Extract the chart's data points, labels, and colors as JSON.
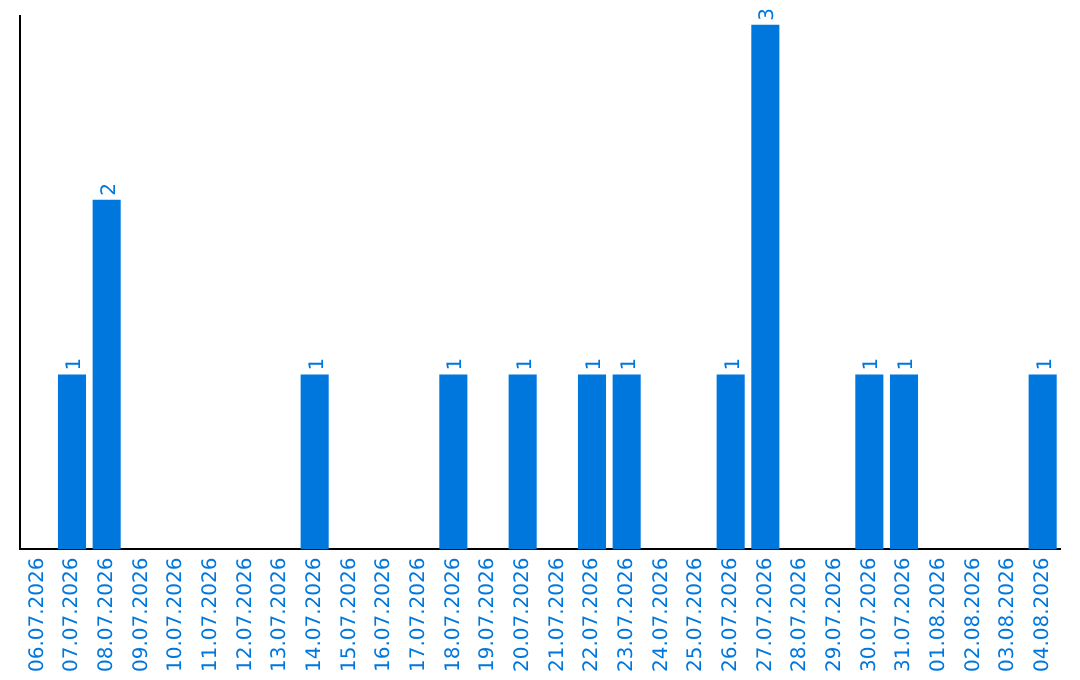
{
  "chart_data": {
    "type": "bar",
    "categories": [
      "06.07.2026",
      "07.07.2026",
      "08.07.2026",
      "09.07.2026",
      "10.07.2026",
      "11.07.2026",
      "12.07.2026",
      "13.07.2026",
      "14.07.2026",
      "15.07.2026",
      "16.07.2026",
      "17.07.2026",
      "18.07.2026",
      "19.07.2026",
      "20.07.2026",
      "21.07.2026",
      "22.07.2026",
      "23.07.2026",
      "24.07.2026",
      "25.07.2026",
      "26.07.2026",
      "27.07.2026",
      "28.07.2026",
      "29.07.2026",
      "30.07.2026",
      "31.07.2026",
      "01.08.2026",
      "02.08.2026",
      "03.08.2026",
      "04.08.2026"
    ],
    "values": [
      0,
      1,
      2,
      0,
      0,
      0,
      0,
      0,
      1,
      0,
      0,
      0,
      1,
      0,
      1,
      0,
      1,
      1,
      0,
      0,
      1,
      3,
      0,
      0,
      1,
      1,
      0,
      0,
      0,
      1
    ],
    "value_labels": [
      null,
      "1",
      "2",
      null,
      null,
      null,
      null,
      null,
      "1",
      null,
      null,
      null,
      "1",
      null,
      "1",
      null,
      "1",
      "1",
      null,
      null,
      "1",
      "3",
      null,
      null,
      "1",
      "1",
      null,
      null,
      null,
      "1"
    ],
    "color": "#0077dd",
    "ylim": [
      0,
      3.05
    ],
    "tick_labels": "x",
    "grid": false,
    "legend": false
  }
}
